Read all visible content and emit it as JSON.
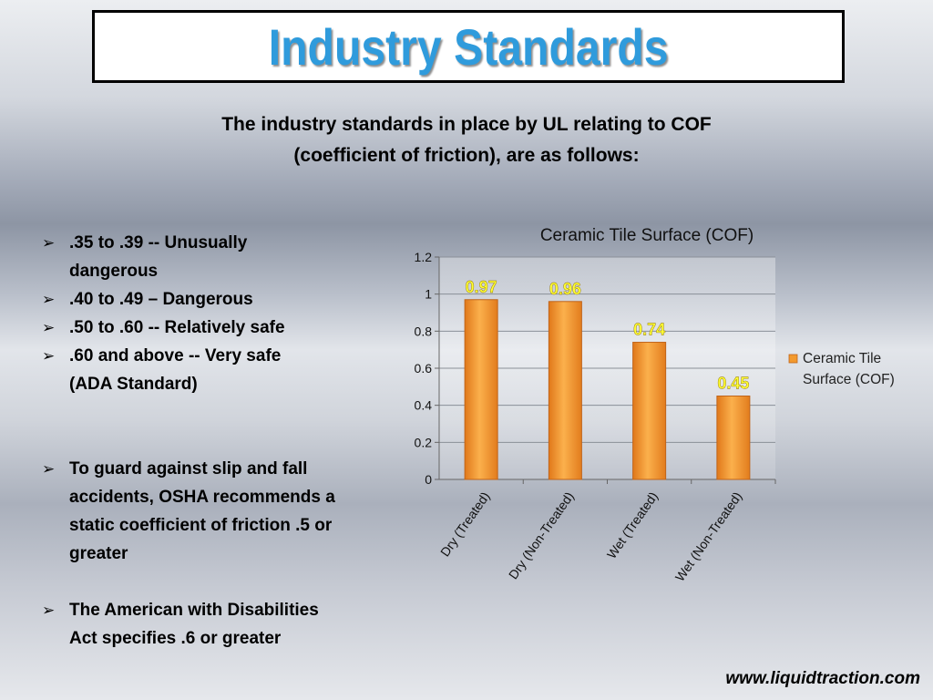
{
  "slide": {
    "title": "Industry Standards",
    "subtitle_line1": "The industry standards in place by UL relating to COF",
    "subtitle_line2": "(coefficient of friction), are as follows:",
    "bullet_marker": "➢",
    "bullets_group1": [
      [
        ".35 to .39 -- Unusually",
        "dangerous"
      ],
      [
        ".40 to .49 – Dangerous"
      ],
      [
        ".50 to .60 -- Relatively safe"
      ],
      [
        ".60 and above -- Very safe",
        "(ADA Standard)"
      ]
    ],
    "bullets_group2": [
      [
        "To guard against slip and fall",
        "accidents, OSHA recommends a",
        "static coefficient  of friction .5 or",
        "greater"
      ]
    ],
    "bullets_group3": [
      [
        "The American with Disabilities",
        "Act specifies .6 or greater"
      ]
    ],
    "footer": "www.liquidtraction.com",
    "colors": {
      "title": "#2f9bdc",
      "bar": "#f39a2e",
      "data_label": "#ffff33"
    }
  },
  "chart_data": {
    "type": "bar",
    "title": "Ceramic Tile Surface (COF)",
    "categories": [
      "Dry (Treated)",
      "Dry (Non-Treated)",
      "Wet (Treated)",
      "Wet (Non-Treated)"
    ],
    "series": [
      {
        "name": "Ceramic Tile Surface (COF)",
        "values": [
          0.97,
          0.96,
          0.74,
          0.45
        ]
      }
    ],
    "data_labels": [
      "0.97",
      "0.96",
      "0.74",
      "0.45"
    ],
    "yticks": [
      "0",
      "0.2",
      "0.4",
      "0.6",
      "0.8",
      "1",
      "1.2"
    ],
    "ylim": [
      0,
      1.2
    ],
    "grid": true,
    "legend_position": "right",
    "legend_lines": [
      "Ceramic Tile",
      "Surface (COF)"
    ]
  }
}
